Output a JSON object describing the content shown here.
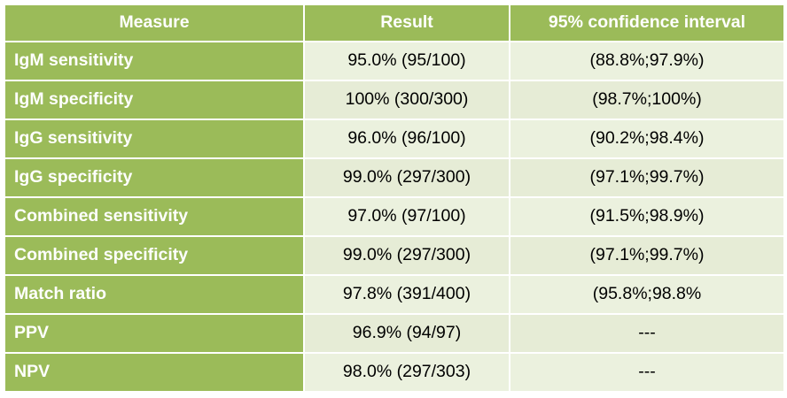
{
  "table": {
    "headers": [
      "Measure",
      "Result",
      "95% confidence interval"
    ],
    "rows": [
      {
        "measure": "IgM sensitivity",
        "result": "95.0% (95/100)",
        "ci": "(88.8%;97.9%)"
      },
      {
        "measure": "IgM specificity",
        "result": "100% (300/300)",
        "ci": "(98.7%;100%)"
      },
      {
        "measure": "IgG sensitivity",
        "result": "96.0% (96/100)",
        "ci": "(90.2%;98.4%)"
      },
      {
        "measure": "IgG specificity",
        "result": "99.0% (297/300)",
        "ci": "(97.1%;99.7%)"
      },
      {
        "measure": "Combined sensitivity",
        "result": "97.0% (97/100)",
        "ci": "(91.5%;98.9%)"
      },
      {
        "measure": "Combined specificity",
        "result": "99.0% (297/300)",
        "ci": "(97.1%;99.7%)"
      },
      {
        "measure": "Match ratio",
        "result": "97.8% (391/400)",
        "ci": "(95.8%;98.8%"
      },
      {
        "measure": "PPV",
        "result": "96.9% (94/97)",
        "ci": "---"
      },
      {
        "measure": "NPV",
        "result": "98.0% (297/303)",
        "ci": "---"
      }
    ]
  },
  "colors": {
    "header_green": "#9bbb59",
    "cell_light": "#ebf1de"
  }
}
